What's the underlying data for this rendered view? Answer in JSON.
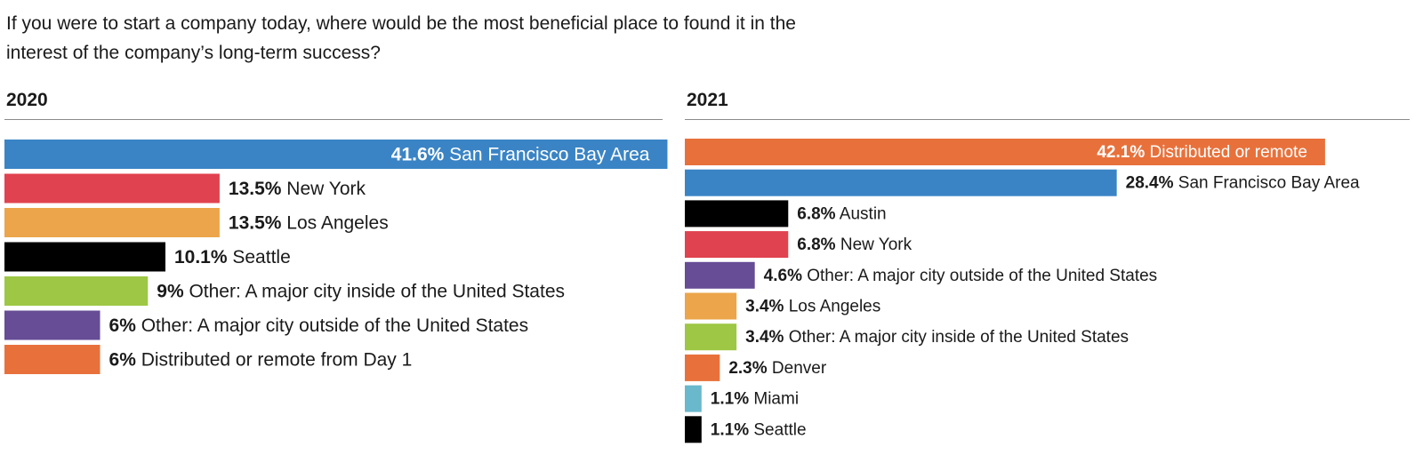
{
  "question": "If you were to start a company today, where would be the most beneficial place to found it in the interest of the company’s long-term success?",
  "chart_data": [
    {
      "type": "bar",
      "orientation": "horizontal",
      "title": "2020",
      "unit": "%",
      "bars": [
        {
          "value": 41.6,
          "label": "41.6%",
          "category": "San Francisco Bay Area",
          "color": "#3a84c5",
          "label_inside": true
        },
        {
          "value": 13.5,
          "label": "13.5%",
          "category": "New York",
          "color": "#e0424f",
          "label_inside": false
        },
        {
          "value": 13.5,
          "label": "13.5%",
          "category": "Los Angeles",
          "color": "#eca54a",
          "label_inside": false
        },
        {
          "value": 10.1,
          "label": "10.1%",
          "category": "Seattle",
          "color": "#000000",
          "label_inside": false
        },
        {
          "value": 9,
          "label": "9%",
          "category": "Other: A major city inside of the United States",
          "color": "#9dc745",
          "label_inside": false
        },
        {
          "value": 6,
          "label": "6%",
          "category": "Other: A major city outside of the United States",
          "color": "#664d95",
          "label_inside": false
        },
        {
          "value": 6,
          "label": "6%",
          "category": "Distributed or remote from Day 1",
          "color": "#e8713b",
          "label_inside": false
        }
      ]
    },
    {
      "type": "bar",
      "orientation": "horizontal",
      "title": "2021",
      "unit": "%",
      "bars": [
        {
          "value": 42.1,
          "label": "42.1%",
          "category": "Distributed or remote",
          "color": "#e8713b",
          "label_inside": true
        },
        {
          "value": 28.4,
          "label": "28.4%",
          "category": "San Francisco Bay Area",
          "color": "#3a84c5",
          "label_inside": false
        },
        {
          "value": 6.8,
          "label": "6.8%",
          "category": "Austin",
          "color": "#000000",
          "label_inside": false
        },
        {
          "value": 6.8,
          "label": "6.8%",
          "category": "New York",
          "color": "#e0424f",
          "label_inside": false
        },
        {
          "value": 4.6,
          "label": "4.6%",
          "category": "Other: A major city outside of the United States",
          "color": "#664d95",
          "label_inside": false
        },
        {
          "value": 3.4,
          "label": "3.4%",
          "category": "Los Angeles",
          "color": "#eca54a",
          "label_inside": false
        },
        {
          "value": 3.4,
          "label": "3.4%",
          "category": "Other: A major city inside of the United States",
          "color": "#9dc745",
          "label_inside": false
        },
        {
          "value": 2.3,
          "label": "2.3%",
          "category": "Denver",
          "color": "#e8713b",
          "label_inside": false
        },
        {
          "value": 1.1,
          "label": "1.1%",
          "category": "Miami",
          "color": "#69b8cc",
          "label_inside": false
        },
        {
          "value": 1.1,
          "label": "1.1%",
          "category": "Seattle",
          "color": "#000000",
          "label_inside": false
        }
      ]
    }
  ]
}
